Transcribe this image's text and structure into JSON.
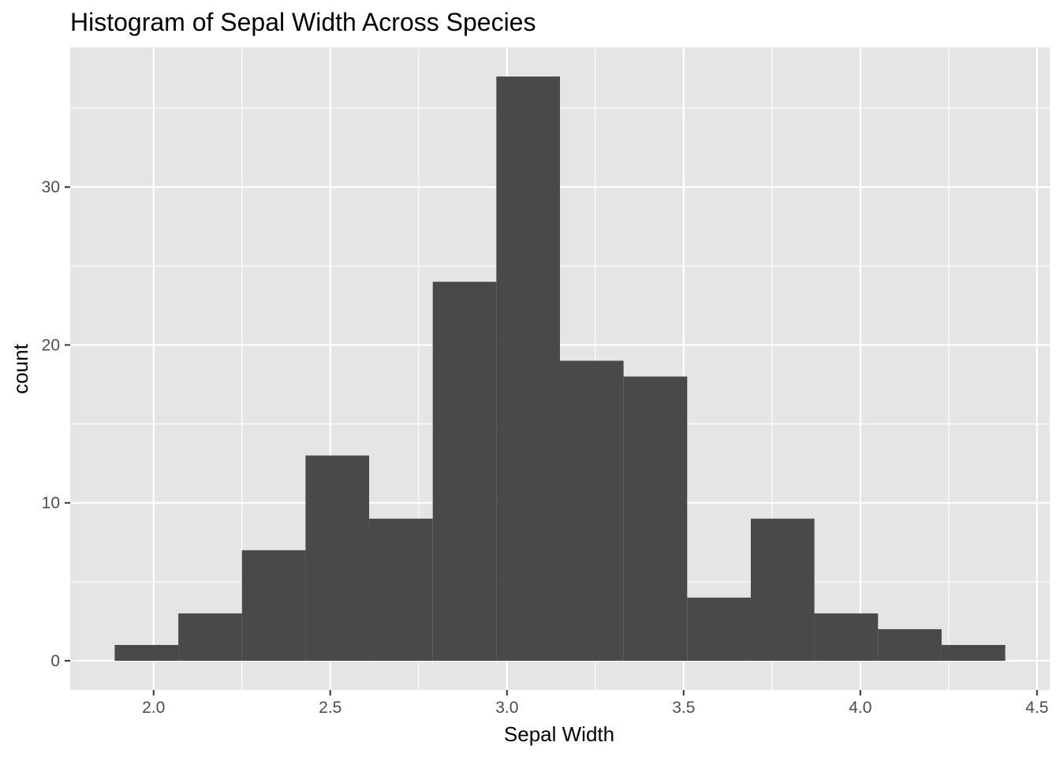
{
  "chart_data": {
    "type": "bar",
    "subtype": "histogram",
    "title": "Histogram of Sepal Width Across Species",
    "xlabel": "Sepal Width",
    "ylabel": "count",
    "bins": [
      {
        "x0": 1.89,
        "x1": 2.07,
        "count": 1
      },
      {
        "x0": 2.07,
        "x1": 2.25,
        "count": 3
      },
      {
        "x0": 2.25,
        "x1": 2.43,
        "count": 7
      },
      {
        "x0": 2.43,
        "x1": 2.61,
        "count": 13
      },
      {
        "x0": 2.61,
        "x1": 2.79,
        "count": 9
      },
      {
        "x0": 2.79,
        "x1": 2.97,
        "count": 24
      },
      {
        "x0": 2.97,
        "x1": 3.15,
        "count": 37
      },
      {
        "x0": 3.15,
        "x1": 3.33,
        "count": 19
      },
      {
        "x0": 3.33,
        "x1": 3.51,
        "count": 18
      },
      {
        "x0": 3.51,
        "x1": 3.69,
        "count": 4
      },
      {
        "x0": 3.69,
        "x1": 3.87,
        "count": 9
      },
      {
        "x0": 3.87,
        "x1": 4.05,
        "count": 3
      },
      {
        "x0": 4.05,
        "x1": 4.23,
        "count": 2
      },
      {
        "x0": 4.23,
        "x1": 4.41,
        "count": 1
      }
    ],
    "xlim": [
      1.764,
      4.536
    ],
    "ylim": [
      -1.85,
      38.85
    ],
    "x_ticks": [
      {
        "value": 2.0,
        "label": "2.0"
      },
      {
        "value": 2.5,
        "label": "2.5"
      },
      {
        "value": 3.0,
        "label": "3.0"
      },
      {
        "value": 3.5,
        "label": "3.5"
      },
      {
        "value": 4.0,
        "label": "4.0"
      },
      {
        "value": 4.5,
        "label": "4.5"
      }
    ],
    "y_ticks": [
      {
        "value": 0,
        "label": "0"
      },
      {
        "value": 10,
        "label": "10"
      },
      {
        "value": 20,
        "label": "20"
      },
      {
        "value": 30,
        "label": "30"
      }
    ],
    "grid": true,
    "colors": {
      "panel_background": "#e5e5e5",
      "gridline": "#ffffff",
      "bar_fill": "#494949",
      "tick_mark": "#333333"
    }
  }
}
